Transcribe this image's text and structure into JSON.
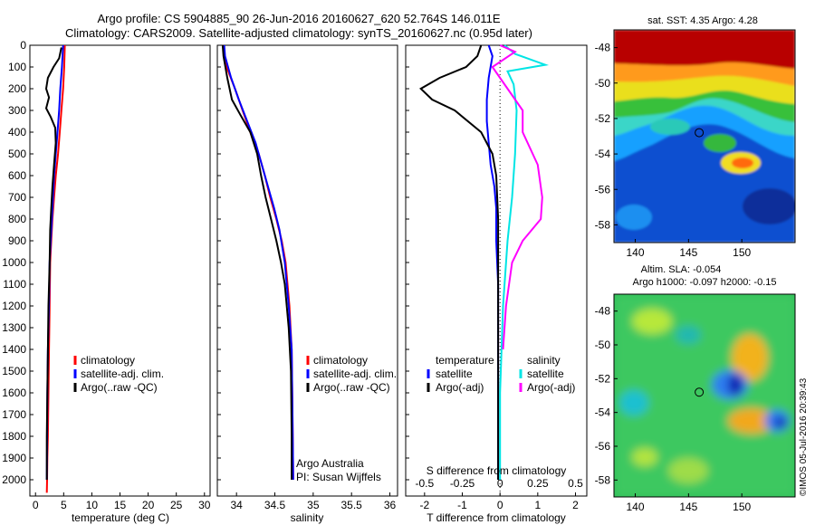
{
  "title_line1": "Argo profile: CS 5904885_90 26-Jun-2016 20160627_620 52.764S 146.011E",
  "title_line2": "Climatology: CARS2009. Satellite-adjusted climatology: synTS_20160627.nc (0.95d later)",
  "footer_stamp": "©IMOS 05-Jul-2016 20:39:43",
  "colors": {
    "climatology": "#ff0000",
    "satellite": "#0000ff",
    "argo": "#000000",
    "sat_salinity": "#00e5e5",
    "argo_salinity": "#ff00ff"
  },
  "chart_data": [
    {
      "id": "temperature",
      "type": "line",
      "xlabel": "temperature (deg C)",
      "ylabel": "",
      "xlim": [
        -1,
        31
      ],
      "ylim": [
        2075,
        0
      ],
      "xticks": [
        "0",
        "5",
        "10",
        "15",
        "20",
        "25",
        "30"
      ],
      "yticks": [
        "0",
        "100",
        "200",
        "300",
        "400",
        "500",
        "600",
        "700",
        "800",
        "900",
        "1000",
        "1100",
        "1200",
        "1300",
        "1400",
        "1500",
        "1600",
        "1700",
        "1800",
        "1900",
        "2000"
      ],
      "legend": [
        "climatology",
        "satellite-adj. clim.",
        "Argo(..raw -QC)"
      ],
      "series": [
        {
          "name": "climatology",
          "color": "#ff0000",
          "x": [
            5.2,
            5.1,
            4.9,
            4.6,
            4.3,
            4.0,
            3.6,
            3.3,
            3.0,
            2.8,
            2.6,
            2.5,
            2.4,
            2.3,
            2.2,
            2.1,
            2.05,
            2.0
          ],
          "y": [
            0,
            100,
            200,
            300,
            400,
            500,
            600,
            700,
            800,
            900,
            1000,
            1200,
            1400,
            1600,
            1800,
            1900,
            2000,
            2060
          ]
        },
        {
          "name": "satellite-adj. clim.",
          "color": "#0000ff",
          "x": [
            4.9,
            4.7,
            4.4,
            4.2,
            3.9,
            3.6,
            3.3,
            3.1,
            2.9,
            2.7,
            2.5,
            2.4,
            2.2,
            2.1,
            2.05,
            2.0
          ],
          "y": [
            0,
            100,
            200,
            300,
            400,
            500,
            600,
            700,
            800,
            900,
            1000,
            1200,
            1400,
            1600,
            1800,
            2000
          ]
        },
        {
          "name": "Argo(..raw -QC)",
          "color": "#000000",
          "x": [
            4.6,
            4.2,
            3.2,
            2.2,
            1.9,
            2.4,
            1.9,
            2.7,
            3.5,
            3.6,
            3.3,
            3.0,
            2.8,
            2.6,
            2.5,
            2.3,
            2.2,
            2.1,
            2.0,
            2.0
          ],
          "y": [
            10,
            60,
            100,
            150,
            200,
            240,
            290,
            330,
            380,
            450,
            550,
            650,
            750,
            850,
            1000,
            1200,
            1400,
            1600,
            1800,
            2000
          ]
        }
      ]
    },
    {
      "id": "salinity",
      "type": "line",
      "xlabel": "salinity",
      "ylabel": "",
      "xlim": [
        33.75,
        36.1
      ],
      "ylim": [
        2075,
        0
      ],
      "xticks": [
        "34",
        "34.5",
        "35",
        "35.5",
        "36"
      ],
      "legend": [
        "climatology",
        "satellite-adj. clim.",
        "Argo(..raw -QC)"
      ],
      "annotation": [
        "Argo Australia",
        "PI: Susan Wijffels"
      ],
      "series": [
        {
          "name": "climatology",
          "color": "#ff0000",
          "x": [
            33.82,
            33.87,
            33.98,
            34.08,
            34.18,
            34.29,
            34.37,
            34.44,
            34.52,
            34.59,
            34.64,
            34.69,
            34.72,
            34.73,
            34.74
          ],
          "y": [
            0,
            100,
            200,
            300,
            400,
            500,
            600,
            700,
            800,
            900,
            1000,
            1200,
            1400,
            1700,
            2000
          ]
        },
        {
          "name": "satellite-adj. clim.",
          "color": "#0000ff",
          "x": [
            33.84,
            33.85,
            33.93,
            34.03,
            34.14,
            34.25,
            34.33,
            34.41,
            34.49,
            34.56,
            34.63,
            34.68,
            34.72,
            34.73,
            34.74
          ],
          "y": [
            0,
            50,
            150,
            250,
            350,
            450,
            550,
            650,
            750,
            850,
            1000,
            1200,
            1400,
            1700,
            2000
          ]
        },
        {
          "name": "Argo(..raw -QC)",
          "color": "#000000",
          "x": [
            33.82,
            33.83,
            33.88,
            33.94,
            34.05,
            34.18,
            34.27,
            34.32,
            34.38,
            34.45,
            34.52,
            34.58,
            34.63,
            34.68,
            34.71,
            34.72,
            34.72
          ],
          "y": [
            0,
            50,
            150,
            250,
            320,
            400,
            500,
            600,
            700,
            800,
            900,
            1000,
            1100,
            1300,
            1500,
            1800,
            2000
          ]
        }
      ]
    },
    {
      "id": "difference",
      "type": "line",
      "xlabel": "T difference from climatology",
      "x2label": "S difference from climatology",
      "xlim": [
        -2.5,
        2.3
      ],
      "ylim": [
        2075,
        0
      ],
      "xticks": [
        "-2",
        "-1",
        "0",
        "1",
        "2"
      ],
      "x2ticks": [
        "-0.5",
        "-0.25",
        "0",
        "0.25",
        "0.5"
      ],
      "legend_temperature": {
        "heading": "temperature",
        "items": [
          "satellite",
          "Argo(-adj)"
        ]
      },
      "legend_salinity": {
        "heading": "salinity",
        "items": [
          "satellite",
          "Argo(-adj)"
        ]
      },
      "series": [
        {
          "name": "temperature satellite",
          "color": "#0000ff",
          "x": [
            -0.3,
            -0.2,
            -0.3,
            -0.35,
            -0.35,
            -0.3,
            -0.25,
            -0.15,
            -0.1,
            -0.1,
            -0.05,
            -0.05,
            -0.05
          ],
          "y": [
            0,
            50,
            150,
            250,
            350,
            450,
            550,
            650,
            750,
            900,
            1100,
            1500,
            2000
          ]
        },
        {
          "name": "temperature Argo(-adj)",
          "color": "#000000",
          "x": [
            -0.5,
            -0.6,
            -0.9,
            -1.6,
            -2.1,
            -1.8,
            -1.2,
            -0.5,
            -0.2,
            -0.1,
            -0.05,
            -0.05,
            -0.05
          ],
          "y": [
            0,
            50,
            100,
            150,
            200,
            250,
            300,
            400,
            500,
            600,
            800,
            1200,
            2000
          ]
        },
        {
          "name": "salinity satellite",
          "color": "#00e5e5",
          "x": [
            0.03,
            0.1,
            0.3,
            0.05,
            0.09,
            0.11,
            0.1,
            0.08,
            0.05,
            0.02,
            0.0,
            0.0
          ],
          "y": [
            0,
            40,
            90,
            120,
            180,
            300,
            500,
            700,
            900,
            1200,
            1600,
            2000
          ]
        },
        {
          "name": "salinity Argo(-adj)",
          "color": "#ff00ff",
          "x": [
            0.0,
            0.1,
            -0.05,
            0.05,
            0.15,
            0.15,
            0.25,
            0.28,
            0.27,
            0.15,
            0.08,
            0.04,
            0.02
          ],
          "y": [
            0,
            30,
            100,
            200,
            300,
            400,
            550,
            700,
            800,
            900,
            1000,
            1200,
            1400
          ]
        }
      ]
    },
    {
      "id": "sst_map",
      "type": "heatmap",
      "title": "sat. SST: 4.35  Argo: 4.28",
      "xticks": [
        "140",
        "145",
        "150"
      ],
      "yticks": [
        "-48",
        "-50",
        "-52",
        "-54",
        "-56",
        "-58"
      ],
      "xlim": [
        138,
        155
      ],
      "ylim": [
        -59,
        -47
      ],
      "marker": {
        "lon": 146.0,
        "lat": -52.8
      }
    },
    {
      "id": "sla_map",
      "type": "heatmap",
      "title_line1": "Altim. SLA: -0.054",
      "title_line2": "Argo h1000: -0.097  h2000: -0.15",
      "xticks": [
        "140",
        "145",
        "150"
      ],
      "yticks": [
        "-48",
        "-50",
        "-52",
        "-54",
        "-56",
        "-58"
      ],
      "xlim": [
        138,
        155
      ],
      "ylim": [
        -59,
        -47
      ],
      "marker": {
        "lon": 146.0,
        "lat": -52.8
      }
    }
  ]
}
